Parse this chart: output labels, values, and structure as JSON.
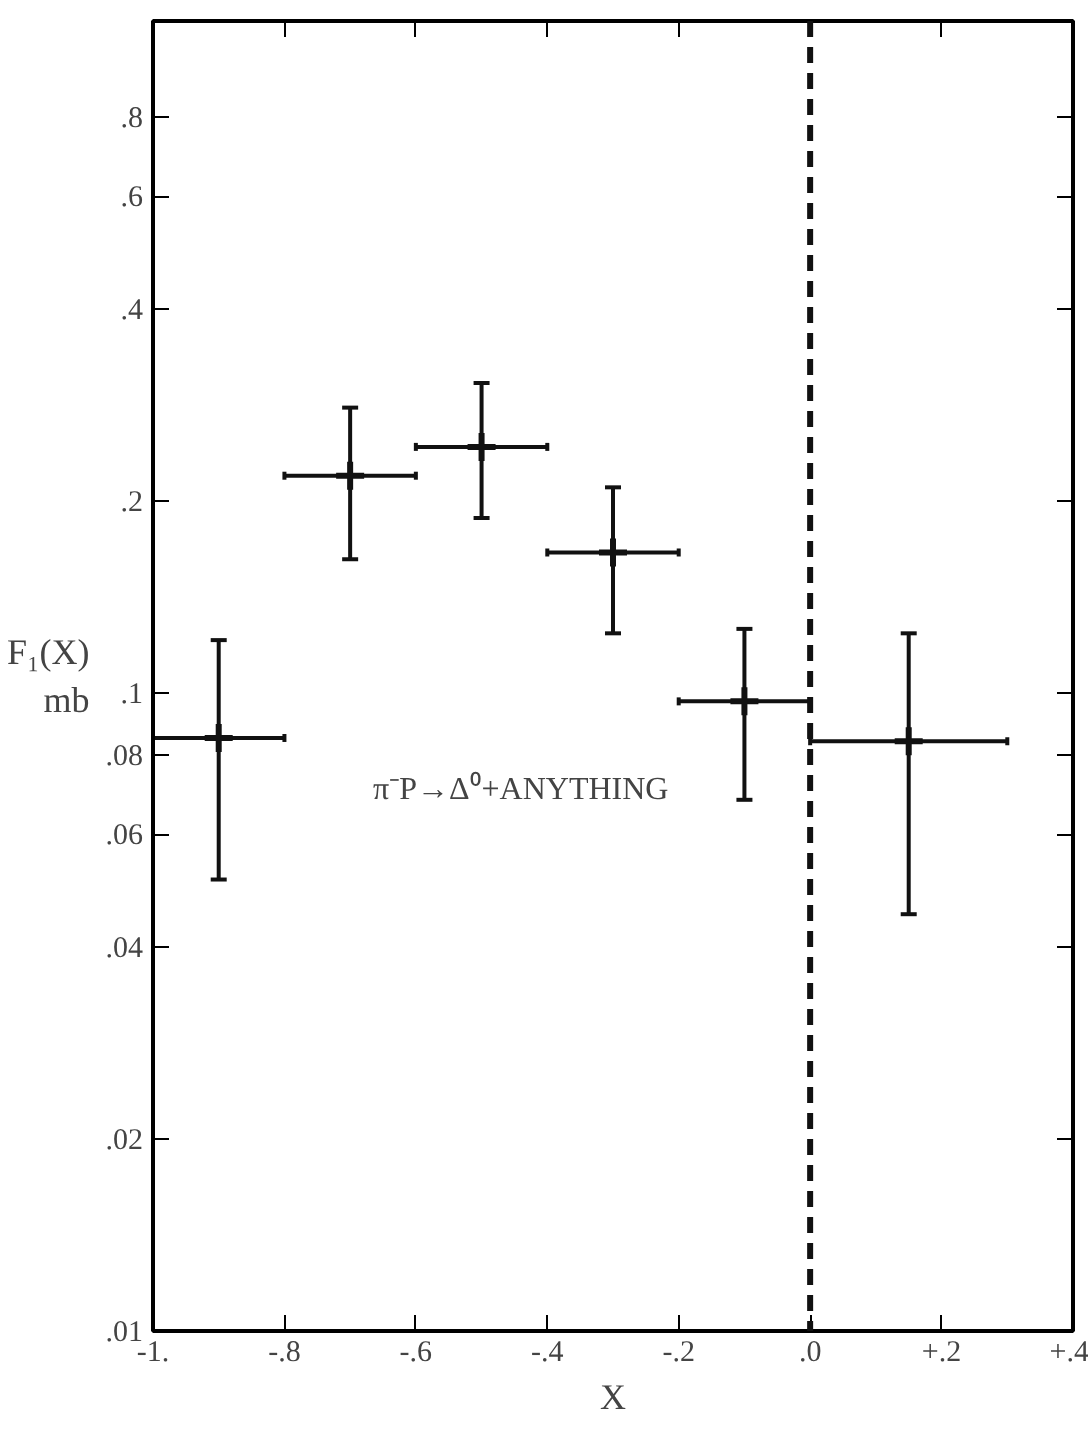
{
  "chart_data": {
    "type": "scatter",
    "xlabel": "X",
    "ylabel": "F₁(X)\nmb",
    "log": "y",
    "marker": "cross",
    "grid": false,
    "x": [
      -0.9,
      -0.7,
      -0.5,
      -0.3,
      -0.1,
      0.15
    ],
    "values": [
      0.085,
      0.219,
      0.243,
      0.166,
      0.097,
      0.084
    ],
    "errors": [
      [
        0.051,
        0.121
      ],
      [
        0.162,
        0.28
      ],
      [
        0.188,
        0.306
      ],
      [
        0.124,
        0.21
      ],
      [
        0.068,
        0.126
      ],
      [
        0.045,
        0.124
      ]
    ],
    "xerrors": [
      0.1,
      0.1,
      0.1,
      0.1,
      0.1,
      0.15
    ],
    "color": "#111111",
    "xlim": [
      -1,
      0.4
    ],
    "ylim": [
      0.01,
      1.13
    ],
    "xticks": [
      {
        "value": -1,
        "label": "-1."
      },
      {
        "value": -0.8,
        "label": "-.8"
      },
      {
        "value": -0.6,
        "label": "-.6"
      },
      {
        "value": -0.4,
        "label": "-.4"
      },
      {
        "value": -0.2,
        "label": "-.2"
      },
      {
        "value": 0,
        "label": ".0"
      },
      {
        "value": 0.2,
        "label": "+.2"
      },
      {
        "value": 0.4,
        "label": "+.4"
      }
    ],
    "yticks": [
      {
        "value": 0.01,
        "label": ".01"
      },
      {
        "value": 0.02,
        "label": ".02"
      },
      {
        "value": 0.04,
        "label": ".04"
      },
      {
        "value": 0.06,
        "label": ".06"
      },
      {
        "value": 0.08,
        "label": ".08"
      },
      {
        "value": 0.1,
        "label": ".1"
      },
      {
        "value": 0.2,
        "label": ".2"
      },
      {
        "value": 0.4,
        "label": ".4"
      },
      {
        "value": 0.6,
        "label": ".6"
      },
      {
        "value": 0.8,
        "label": ".8"
      }
    ],
    "ref_lines": [
      {
        "axis": "x",
        "value": 0,
        "line_style": "dashed",
        "color": "#111111"
      }
    ],
    "annotations": [
      "π⁻P→Δ⁰+ANYTHING"
    ]
  }
}
